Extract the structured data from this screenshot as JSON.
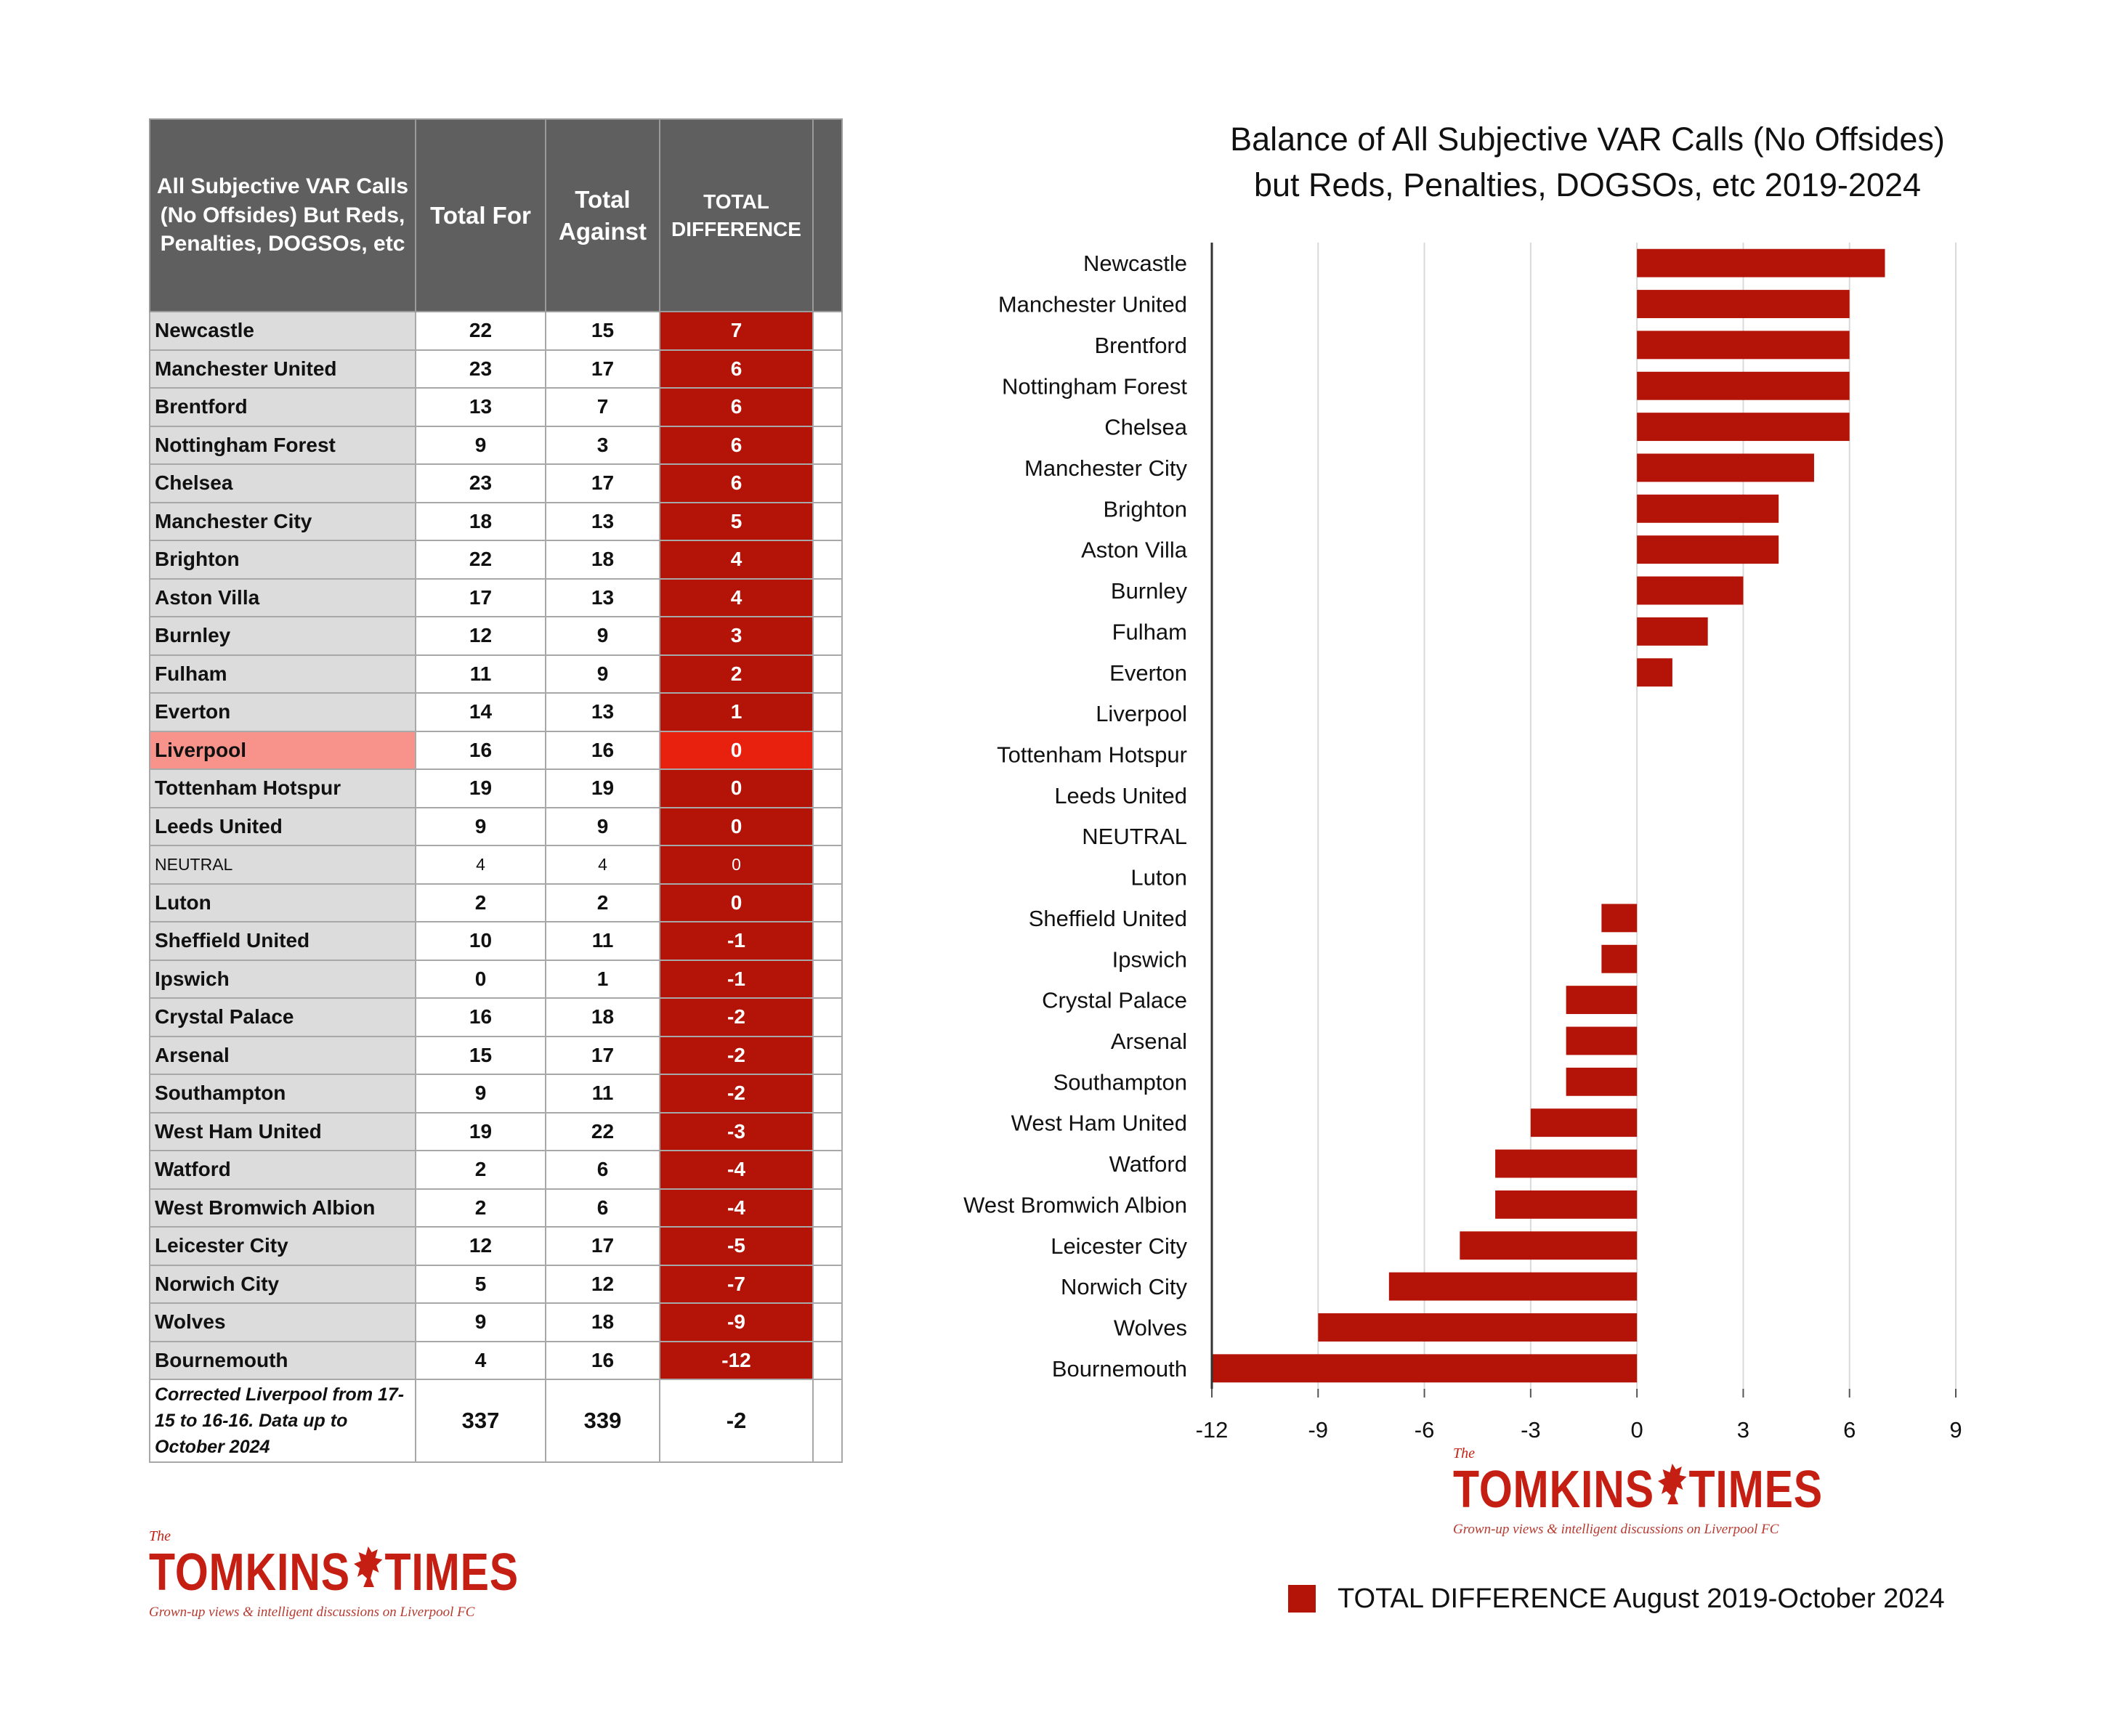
{
  "table": {
    "headers": {
      "team": "All Subjective VAR Calls (No Offsides) But Reds, Penalties, DOGSOs, etc",
      "total_for": "Total For",
      "total_against": "Total Against",
      "total_difference": "TOTAL DIFFERENCE"
    },
    "rows": [
      {
        "team": "Newcastle",
        "for": "22",
        "against": "15",
        "diff": "7"
      },
      {
        "team": "Manchester United",
        "for": "23",
        "against": "17",
        "diff": "6"
      },
      {
        "team": "Brentford",
        "for": "13",
        "against": "7",
        "diff": "6"
      },
      {
        "team": "Nottingham Forest",
        "for": "9",
        "against": "3",
        "diff": "6"
      },
      {
        "team": "Chelsea",
        "for": "23",
        "against": "17",
        "diff": "6"
      },
      {
        "team": "Manchester City",
        "for": "18",
        "against": "13",
        "diff": "5"
      },
      {
        "team": "Brighton",
        "for": "22",
        "against": "18",
        "diff": "4"
      },
      {
        "team": "Aston Villa",
        "for": "17",
        "against": "13",
        "diff": "4"
      },
      {
        "team": "Burnley",
        "for": "12",
        "against": "9",
        "diff": "3"
      },
      {
        "team": "Fulham",
        "for": "11",
        "against": "9",
        "diff": "2"
      },
      {
        "team": "Everton",
        "for": "14",
        "against": "13",
        "diff": "1"
      },
      {
        "team": "Liverpool",
        "for": "16",
        "against": "16",
        "diff": "0"
      },
      {
        "team": "Tottenham Hotspur",
        "for": "19",
        "against": "19",
        "diff": "0"
      },
      {
        "team": "Leeds United",
        "for": "9",
        "against": "9",
        "diff": "0"
      },
      {
        "team": "NEUTRAL",
        "for": "4",
        "against": "4",
        "diff": "0"
      },
      {
        "team": "Luton",
        "for": "2",
        "against": "2",
        "diff": "0"
      },
      {
        "team": "Sheffield United",
        "for": "10",
        "against": "11",
        "diff": "-1"
      },
      {
        "team": "Ipswich",
        "for": "0",
        "against": "1",
        "diff": "-1"
      },
      {
        "team": "Crystal Palace",
        "for": "16",
        "against": "18",
        "diff": "-2"
      },
      {
        "team": "Arsenal",
        "for": "15",
        "against": "17",
        "diff": "-2"
      },
      {
        "team": "Southampton",
        "for": "9",
        "against": "11",
        "diff": "-2"
      },
      {
        "team": "West Ham United",
        "for": "19",
        "against": "22",
        "diff": "-3"
      },
      {
        "team": "Watford",
        "for": "2",
        "against": "6",
        "diff": "-4"
      },
      {
        "team": "West Bromwich Albion",
        "for": "2",
        "against": "6",
        "diff": "-4"
      },
      {
        "team": "Leicester City",
        "for": "12",
        "against": "17",
        "diff": "-5"
      },
      {
        "team": "Norwich City",
        "for": "5",
        "against": "12",
        "diff": "-7"
      },
      {
        "team": "Wolves",
        "for": "9",
        "against": "18",
        "diff": "-9"
      },
      {
        "team": "Bournemouth",
        "for": "4",
        "against": "16",
        "diff": "-12"
      }
    ],
    "highlight_team": "Liverpool",
    "footer": {
      "note": "Corrected Liverpool from 17-15 to 16-16. Data up to October 2024",
      "total_for": "337",
      "total_against": "339",
      "total_difference": "-2"
    },
    "colors": {
      "header_bg": "#5f5f5f",
      "team_cell_bg": "#dcdcdc",
      "highlight_team_bg": "#f7938b",
      "diff_cell_bg": "#b41407",
      "highlight_diff_bg": "#e8210f"
    }
  },
  "logo": {
    "the": "The",
    "name_left": "TOMKINS",
    "name_right": "TIMES",
    "bird_icon": "liver-bird-icon",
    "tagline": "Grown-up views & intelligent discussions on Liverpool FC"
  },
  "chart_data": {
    "type": "bar",
    "orientation": "horizontal",
    "title_lines": [
      "Balance of All Subjective VAR Calls (No Offsides)",
      "but Reds, Penalties, DOGSOs, etc 2019-2024"
    ],
    "categories": [
      "Newcastle",
      "Manchester United",
      "Brentford",
      "Nottingham Forest",
      "Chelsea",
      "Manchester City",
      "Brighton",
      "Aston Villa",
      "Burnley",
      "Fulham",
      "Everton",
      "Liverpool",
      "Tottenham Hotspur",
      "Leeds United",
      "NEUTRAL",
      "Luton",
      "Sheffield United",
      "Ipswich",
      "Crystal Palace",
      "Arsenal",
      "Southampton",
      "West Ham United",
      "Watford",
      "West Bromwich Albion",
      "Leicester City",
      "Norwich City",
      "Wolves",
      "Bournemouth"
    ],
    "series": [
      {
        "name": "TOTAL DIFFERENCE August 2019-October 2024",
        "values": [
          7,
          6,
          6,
          6,
          6,
          5,
          4,
          4,
          3,
          2,
          1,
          0,
          0,
          0,
          0,
          0,
          -1,
          -1,
          -2,
          -2,
          -2,
          -3,
          -4,
          -4,
          -5,
          -7,
          -9,
          -12
        ],
        "color": "#b41407"
      }
    ],
    "xlim": [
      -12,
      9
    ],
    "xticks": [
      -12,
      -9,
      -6,
      -3,
      0,
      3,
      6,
      9
    ],
    "grid": true,
    "legend_position": "bottom"
  }
}
